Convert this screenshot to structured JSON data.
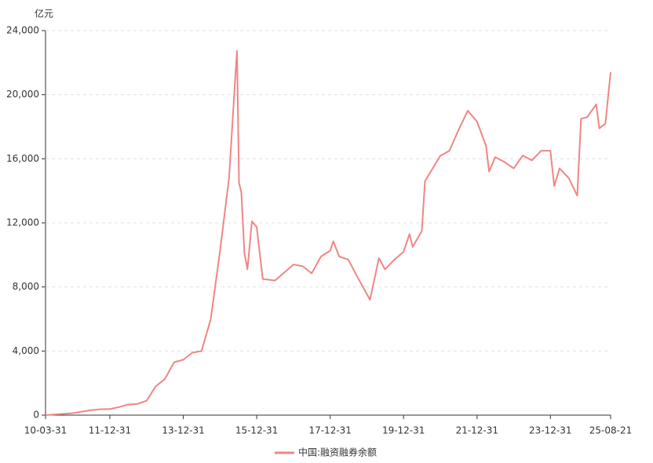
{
  "chart_data": {
    "type": "line",
    "y_label": "亿元",
    "x": [
      "10-03-31",
      "10-06-30",
      "10-09-30",
      "10-12-31",
      "11-03-31",
      "11-06-30",
      "11-09-30",
      "11-12-31",
      "12-03-31",
      "12-06-30",
      "12-09-30",
      "12-12-31",
      "13-03-31",
      "13-06-30",
      "13-09-30",
      "13-12-31",
      "14-03-31",
      "14-06-30",
      "14-09-30",
      "14-12-31",
      "15-03-31",
      "15-05-29",
      "15-06-18",
      "15-07-08",
      "15-07-31",
      "15-08-31",
      "15-09-30",
      "15-11-13",
      "15-12-31",
      "16-02-29",
      "16-06-30",
      "16-09-30",
      "16-12-31",
      "17-03-31",
      "17-06-30",
      "17-09-30",
      "17-12-31",
      "18-01-31",
      "18-03-31",
      "18-06-30",
      "18-09-30",
      "18-12-31",
      "19-01-31",
      "19-04-30",
      "19-06-30",
      "19-09-30",
      "19-12-31",
      "20-02-28",
      "20-03-31",
      "20-06-30",
      "20-07-31",
      "20-12-31",
      "21-03-31",
      "21-06-30",
      "21-09-30",
      "21-12-31",
      "22-03-31",
      "22-04-30",
      "22-06-30",
      "22-09-30",
      "22-12-31",
      "23-03-31",
      "23-06-30",
      "23-09-30",
      "23-12-31",
      "24-02-07",
      "24-03-31",
      "24-06-30",
      "24-09-23",
      "24-10-31",
      "24-12-31",
      "25-03-31",
      "25-04-30",
      "25-06-30",
      "25-08-21"
    ],
    "series": [
      {
        "name": "中国:融资融券余额",
        "color": "#f08585",
        "values": [
          0,
          40,
          80,
          130,
          220,
          310,
          370,
          380,
          500,
          660,
          700,
          900,
          1800,
          2250,
          3300,
          3460,
          3900,
          4000,
          6000,
          10250,
          14800,
          20800,
          22730,
          14500,
          13900,
          10100,
          9100,
          12100,
          11740,
          8500,
          8400,
          8900,
          9400,
          9300,
          8850,
          9900,
          10260,
          10850,
          9900,
          9700,
          8600,
          7560,
          7200,
          9800,
          9100,
          9700,
          10190,
          11300,
          10500,
          11500,
          14600,
          16190,
          16500,
          17800,
          19000,
          18320,
          16800,
          15200,
          16100,
          15800,
          15400,
          16200,
          15900,
          16500,
          16500,
          14300,
          15400,
          14800,
          13700,
          18500,
          18600,
          19400,
          17900,
          18200,
          21400
        ]
      }
    ],
    "xlim": [
      "10-03-31",
      "25-08-21"
    ],
    "xticks": [
      "10-03-31",
      "11-12-31",
      "13-12-31",
      "15-12-31",
      "17-12-31",
      "19-12-31",
      "21-12-31",
      "23-12-31",
      "25-08-21"
    ],
    "ylim": [
      0,
      24000
    ],
    "yticks": [
      0,
      {
        "value": 4000,
        "label": "4,000"
      },
      {
        "value": 8000,
        "label": "8,000"
      },
      {
        "value": 12000,
        "label": "12,000"
      },
      {
        "value": 16000,
        "label": "16,000"
      },
      {
        "value": 20000,
        "label": "20,000"
      },
      {
        "value": 24000,
        "label": "24,000"
      }
    ],
    "grid": true
  }
}
